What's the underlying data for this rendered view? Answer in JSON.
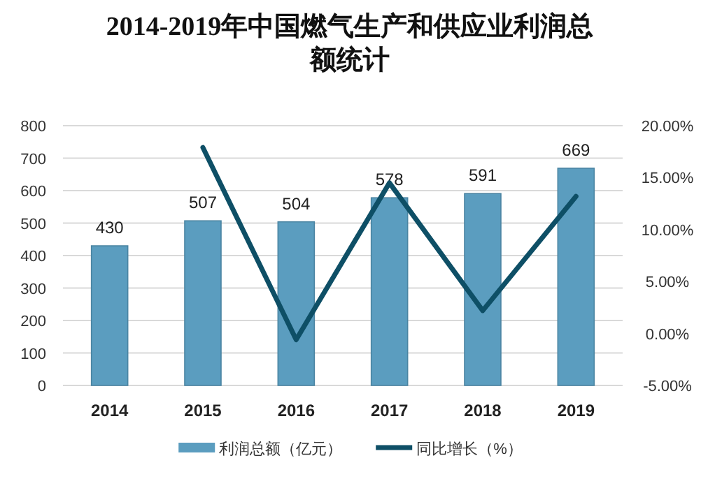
{
  "chart_data": {
    "type": "bar",
    "title": "2014-2019年中国燃气生产和供应业利润总额统计",
    "categories": [
      "2014",
      "2015",
      "2016",
      "2017",
      "2018",
      "2019"
    ],
    "series": [
      {
        "name": "利润总额（亿元）",
        "color": "#5b9dbf",
        "values": [
          430,
          507,
          504,
          578,
          591,
          669
        ],
        "value_labels": [
          "430",
          "507",
          "504",
          "578",
          "591",
          "669"
        ]
      },
      {
        "name": "同比增长（%）",
        "type": "line",
        "axis": "y2",
        "color": "#0e4f66",
        "values": [
          null,
          17.9,
          -0.6,
          14.5,
          2.2,
          13.2
        ]
      }
    ],
    "ylim": [
      0,
      800
    ],
    "yticks": [
      0,
      100,
      200,
      300,
      400,
      500,
      600,
      700,
      800
    ],
    "y2lim": [
      -5,
      20
    ],
    "y2ticks": [
      {
        "value": -5,
        "label": "-5.00%"
      },
      {
        "value": 0,
        "label": "0.00%"
      },
      {
        "value": 5,
        "label": "5.00%"
      },
      {
        "value": 10,
        "label": "10.00%"
      },
      {
        "value": 15,
        "label": "15.00%"
      },
      {
        "value": 20,
        "label": "20.00%"
      }
    ],
    "grid": "y",
    "legend": "bottom",
    "marker": "none",
    "line_style": "solid"
  }
}
